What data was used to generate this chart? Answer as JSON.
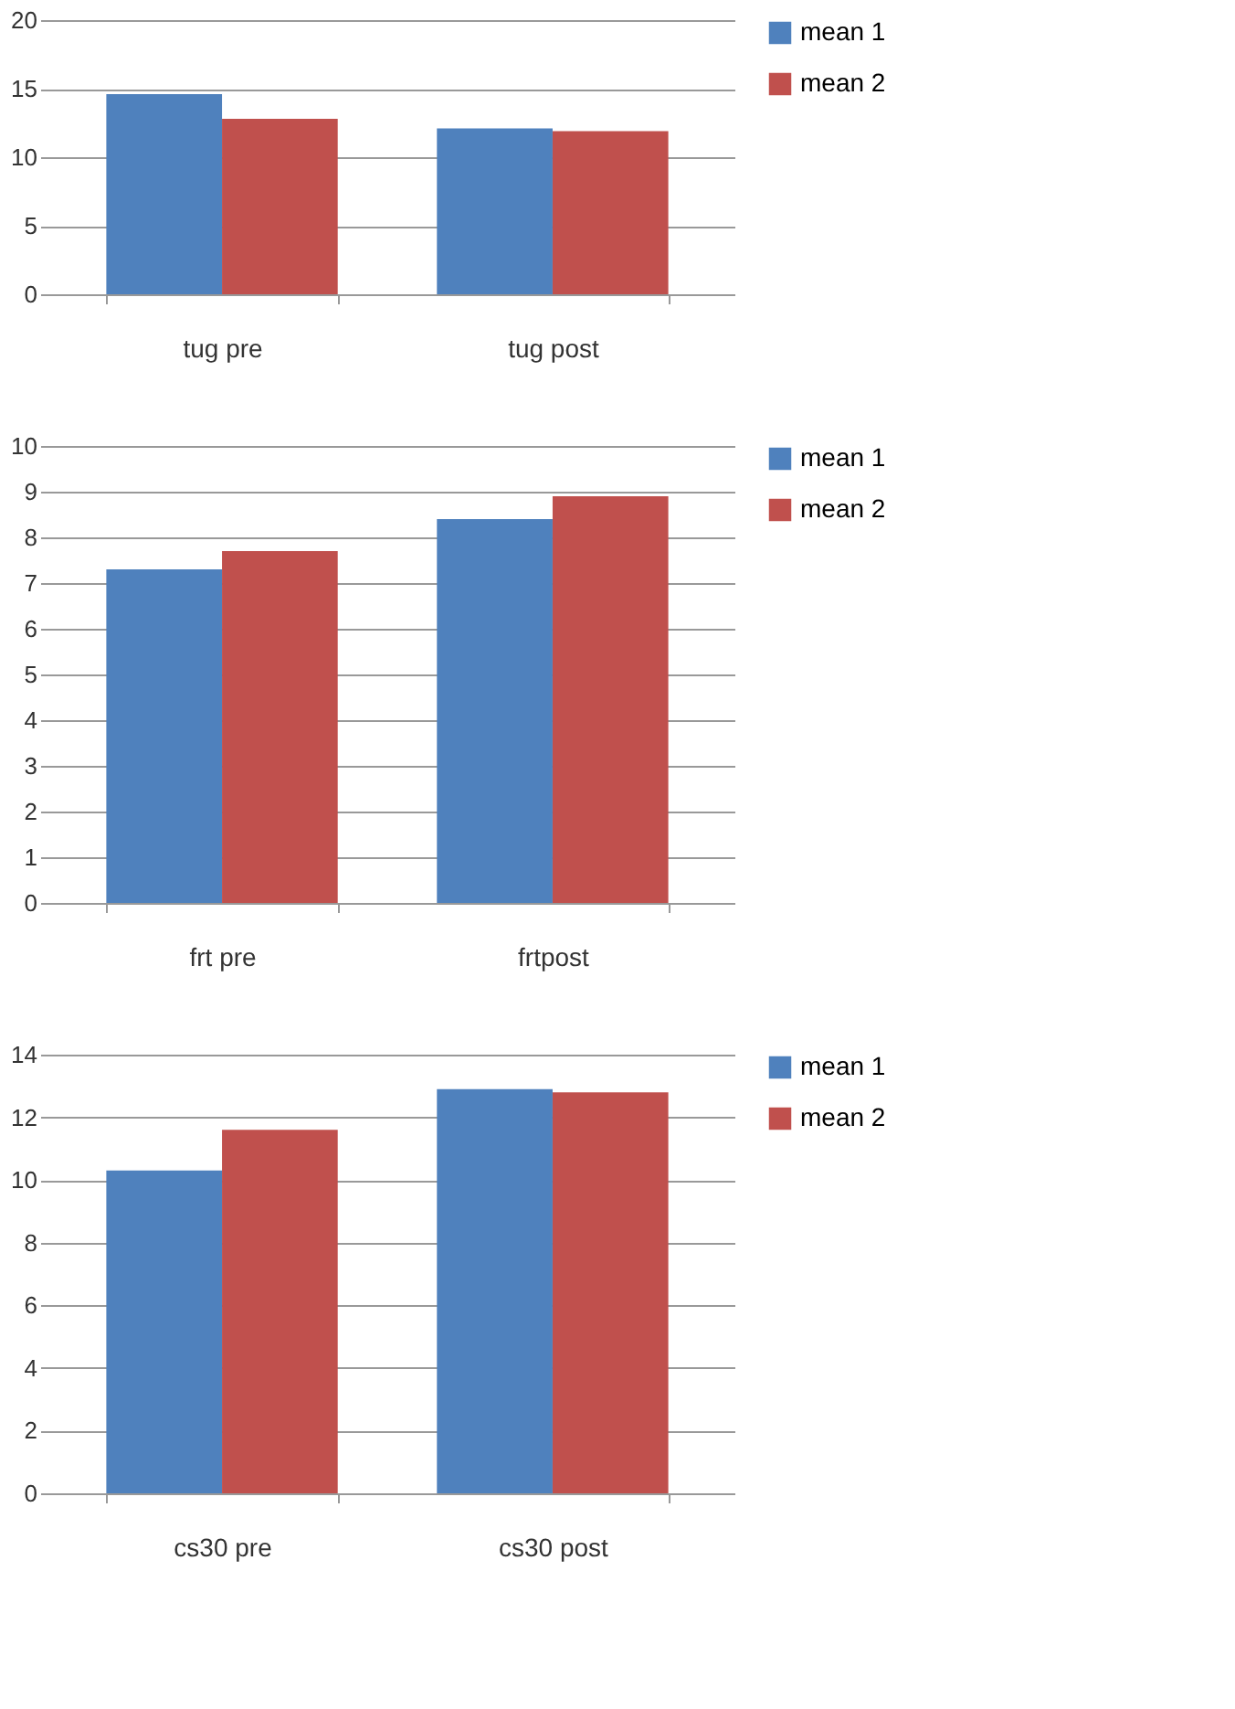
{
  "chart_data": [
    {
      "type": "bar",
      "categories": [
        "tug  pre",
        "tug post"
      ],
      "ylim": [
        0,
        20
      ],
      "yticks": [
        0,
        5,
        10,
        15,
        20
      ],
      "grid": "y",
      "legend": "right",
      "series": [
        {
          "name": "mean 1",
          "color": "#4f81bd",
          "values": [
            14.6,
            12.1
          ]
        },
        {
          "name": "mean 2",
          "color": "#c0504d",
          "values": [
            12.8,
            11.9
          ]
        }
      ]
    },
    {
      "type": "bar",
      "categories": [
        "frt pre",
        "frtpost"
      ],
      "ylim": [
        0,
        10
      ],
      "yticks": [
        0,
        1,
        2,
        3,
        4,
        5,
        6,
        7,
        8,
        9,
        10
      ],
      "grid": "y",
      "legend": "right",
      "series": [
        {
          "name": "mean 1",
          "color": "#4f81bd",
          "values": [
            7.3,
            8.4
          ]
        },
        {
          "name": "mean 2",
          "color": "#c0504d",
          "values": [
            7.7,
            8.9
          ]
        }
      ]
    },
    {
      "type": "bar",
      "categories": [
        "cs30 pre",
        "cs30 post"
      ],
      "ylim": [
        0,
        14
      ],
      "yticks": [
        0,
        2,
        4,
        6,
        8,
        10,
        12,
        14
      ],
      "grid": "y",
      "legend": "right",
      "series": [
        {
          "name": "mean 1",
          "color": "#4f81bd",
          "values": [
            10.3,
            12.9
          ]
        },
        {
          "name": "mean 2",
          "color": "#c0504d",
          "values": [
            11.6,
            12.8
          ]
        }
      ]
    }
  ]
}
